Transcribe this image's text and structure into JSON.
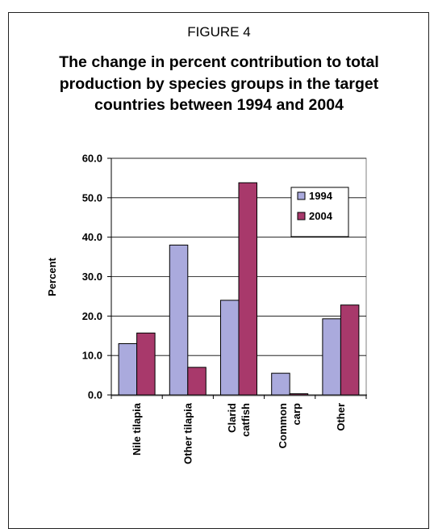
{
  "figure": {
    "label": "FIGURE 4",
    "title": "The change in percent contribution to total production by species groups in the target countries between 1994 and 2004"
  },
  "chart_data": {
    "type": "bar",
    "title": "",
    "xlabel": "",
    "ylabel": "Percent",
    "ylim": [
      0,
      60
    ],
    "yticks": [
      "0.0",
      "10.0",
      "20.0",
      "30.0",
      "40.0",
      "50.0",
      "60.0"
    ],
    "grid": true,
    "legend_position": "top-right",
    "categories": [
      [
        "Nile tilapia"
      ],
      [
        "Other tilapia"
      ],
      [
        "Clarid",
        "catfish"
      ],
      [
        "Common",
        "carp"
      ],
      [
        "Other"
      ]
    ],
    "series": [
      {
        "name": "1994",
        "color": "#aaaadd",
        "values": [
          13.0,
          38.0,
          24.0,
          5.5,
          19.3
        ]
      },
      {
        "name": "2004",
        "color": "#a8396b",
        "values": [
          15.7,
          7.0,
          53.8,
          0.3,
          22.8
        ]
      }
    ]
  }
}
